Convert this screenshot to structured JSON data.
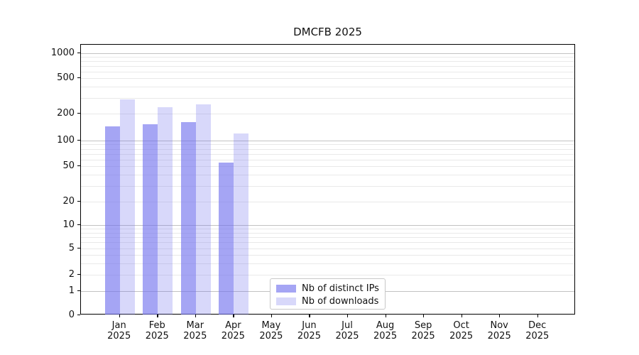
{
  "window": {
    "title": "DMCFB 2025"
  },
  "chart_data": {
    "type": "bar",
    "title": "DMCFB 2025",
    "y_scale": "symlog",
    "ylabel": "",
    "xlabel": "",
    "y_ticks": [
      0,
      1,
      2,
      5,
      10,
      20,
      50,
      100,
      200,
      500,
      1000
    ],
    "y_major_gridlines": [
      1,
      10,
      100,
      1000
    ],
    "ylim": [
      0,
      1300
    ],
    "grid": "horizontal major+minor, no vertical",
    "legend_position": "bottom-center",
    "categories": [
      "Jan",
      "Feb",
      "Mar",
      "Apr",
      "May",
      "Jun",
      "Jul",
      "Aug",
      "Sep",
      "Oct",
      "Nov",
      "Dec"
    ],
    "category_year": "2025",
    "series": [
      {
        "name": "Nb of distinct IPs",
        "color_rgba": "rgba(110,110,238,0.62)",
        "color_hex_on_white": "#a6a6f3",
        "values": [
          145,
          152,
          160,
          55,
          0,
          0,
          0,
          0,
          0,
          0,
          0,
          0
        ]
      },
      {
        "name": "Nb of downloads",
        "color_rgba": "rgba(110,110,238,0.27)",
        "color_hex_on_white": "#d8d8f9",
        "values": [
          290,
          235,
          255,
          120,
          0,
          0,
          0,
          0,
          0,
          0,
          0,
          0
        ]
      }
    ]
  }
}
